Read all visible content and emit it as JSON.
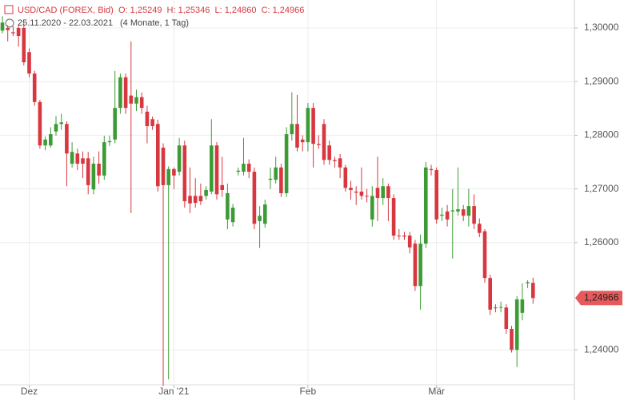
{
  "chart_data": {
    "type": "candlestick",
    "header": {
      "title": "USD/CAD (FOREX, Bid)",
      "ohlc": "O: 1,25249  H: 1,25346  L: 1,24860  C: 1,24966",
      "range": "25.11.2020 - 22.03.2021",
      "duration": "(4 Monate, 1 Tag)"
    },
    "last_label": "1,24966",
    "up_color": "#3d9b35",
    "down_color": "#d7373f",
    "grid": true,
    "ylim": [
      1.23378,
      1.30521
    ],
    "yticks": [
      {
        "value": 1.3,
        "label": "1,30000"
      },
      {
        "value": 1.29,
        "label": "1,29000"
      },
      {
        "value": 1.28,
        "label": "1,28000"
      },
      {
        "value": 1.27,
        "label": "1,27000"
      },
      {
        "value": 1.26,
        "label": "1,26000"
      },
      {
        "value": 1.24,
        "label": "1,24000"
      }
    ],
    "categories": [
      null,
      null,
      null,
      null,
      null,
      "Dez",
      null,
      null,
      null,
      null,
      null,
      null,
      null,
      null,
      null,
      null,
      null,
      null,
      null,
      null,
      null,
      null,
      null,
      null,
      null,
      null,
      null,
      null,
      null,
      null,
      null,
      null,
      "Jan '21",
      null,
      null,
      null,
      null,
      null,
      null,
      null,
      null,
      null,
      null,
      null,
      null,
      null,
      null,
      null,
      null,
      null,
      null,
      null,
      null,
      null,
      null,
      null,
      null,
      "Feb",
      null,
      null,
      null,
      null,
      null,
      null,
      null,
      null,
      null,
      null,
      null,
      null,
      null,
      null,
      null,
      null,
      null,
      null,
      null,
      null,
      null,
      null,
      null,
      "Mär",
      null,
      null,
      null,
      null,
      null,
      null,
      null,
      null,
      null,
      null,
      null,
      null,
      null,
      null,
      null,
      null,
      null,
      null
    ],
    "open": [
      1.2995,
      1.3,
      1.2992,
      1.3,
      1.3,
      1.2955,
      1.2915,
      1.2862,
      1.2781,
      1.2781,
      1.2807,
      1.2821,
      1.2821,
      1.2747,
      1.2766,
      1.2757,
      1.2757,
      1.2699,
      1.2747,
      1.2725,
      1.2787,
      1.2792,
      1.2851,
      1.2908,
      1.2874,
      1.2859,
      1.2871,
      1.2844,
      1.283,
      1.2821,
      1.2777,
      1.2707,
      1.2737,
      1.2732,
      1.2781,
      1.2687,
      1.2687,
      1.2687,
      1.2687,
      1.2695,
      1.2781,
      1.2707,
      1.2643,
      1.2638,
      1.2732,
      1.2732,
      1.2747,
      1.2732,
      1.264,
      1.2635,
      1.2717,
      1.2717,
      1.274,
      1.2692,
      1.2802,
      1.2821,
      1.2792,
      1.2787,
      1.2851,
      1.2784,
      1.2821,
      1.2781,
      1.2754,
      1.2757,
      1.274,
      1.2702,
      1.2695,
      1.2695,
      1.2687,
      1.2643,
      1.2702,
      1.2683,
      1.2705,
      1.2683,
      1.2613,
      1.2613,
      1.2613,
      1.2598,
      1.2519,
      1.2598,
      1.2737,
      1.2735,
      1.265,
      1.2658,
      1.2658,
      1.2658,
      1.2662,
      1.265,
      1.2668,
      1.2635,
      1.2621,
      1.2534,
      1.2479,
      1.2479,
      1.2479,
      1.2439,
      1.24,
      1.2469,
      1.2524,
      1.25249
    ],
    "high": [
      1.3022,
      1.3005,
      1.3003,
      1.3007,
      1.301,
      1.2962,
      1.292,
      1.2866,
      1.2798,
      1.2815,
      1.2836,
      1.284,
      1.2826,
      1.2787,
      1.2775,
      1.277,
      1.2769,
      1.276,
      1.277,
      1.2799,
      1.2799,
      1.292,
      1.2915,
      1.2915,
      1.2975,
      1.2885,
      1.288,
      1.2855,
      1.2835,
      1.2829,
      1.2785,
      1.2742,
      1.274,
      1.2795,
      1.279,
      1.274,
      1.272,
      1.271,
      1.2705,
      1.283,
      1.2787,
      1.276,
      1.271,
      1.2672,
      1.274,
      1.2795,
      1.2755,
      1.274,
      1.2668,
      1.268,
      1.274,
      1.276,
      1.2747,
      1.2815,
      1.288,
      1.2875,
      1.28,
      1.286,
      1.286,
      1.28,
      1.283,
      1.279,
      1.276,
      1.2765,
      1.2745,
      1.2715,
      1.2705,
      1.274,
      1.27,
      1.2705,
      1.276,
      1.272,
      1.271,
      1.269,
      1.2625,
      1.262,
      1.262,
      1.2605,
      1.2615,
      1.275,
      1.2745,
      1.274,
      1.2665,
      1.267,
      1.27,
      1.274,
      1.267,
      1.27,
      1.269,
      1.2645,
      1.2625,
      1.254,
      1.2485,
      1.249,
      1.2485,
      1.2445,
      1.25,
      1.2524,
      1.253,
      1.25346
    ],
    "low": [
      1.299,
      1.2975,
      1.2985,
      1.2965,
      1.293,
      1.2908,
      1.2855,
      1.2775,
      1.2772,
      1.2777,
      1.2799,
      1.281,
      1.2705,
      1.274,
      1.2735,
      1.272,
      1.269,
      1.269,
      1.271,
      1.2717,
      1.278,
      1.2785,
      1.284,
      1.284,
      1.2655,
      1.2845,
      1.284,
      1.2785,
      1.281,
      1.2695,
      1.2333,
      1.2345,
      1.27,
      1.2725,
      1.2665,
      1.2655,
      1.2665,
      1.267,
      1.268,
      1.269,
      1.268,
      1.2685,
      1.2625,
      1.263,
      1.2725,
      1.2725,
      1.272,
      1.2625,
      1.259,
      1.2628,
      1.27,
      1.271,
      1.2685,
      1.2685,
      1.279,
      1.277,
      1.277,
      1.277,
      1.274,
      1.2775,
      1.2745,
      1.2745,
      1.274,
      1.272,
      1.2695,
      1.268,
      1.267,
      1.268,
      1.2675,
      1.263,
      1.264,
      1.267,
      1.264,
      1.2605,
      1.2605,
      1.2605,
      1.258,
      1.251,
      1.2475,
      1.259,
      1.2725,
      1.2635,
      1.264,
      1.263,
      1.257,
      1.265,
      1.264,
      1.263,
      1.2625,
      1.261,
      1.2525,
      1.2465,
      1.247,
      1.247,
      1.243,
      1.2395,
      1.2368,
      1.2455,
      1.2515,
      1.2486
    ],
    "close": [
      1.301,
      1.2996,
      1.299,
      1.2985,
      1.2936,
      1.2915,
      1.2862,
      1.2781,
      1.2792,
      1.2802,
      1.2821,
      1.2824,
      1.2766,
      1.2769,
      1.2747,
      1.2747,
      1.2707,
      1.2747,
      1.2725,
      1.2787,
      1.2789,
      1.2851,
      1.2908,
      1.2851,
      1.2859,
      1.2871,
      1.2851,
      1.2817,
      1.2817,
      1.2705,
      1.2707,
      1.2737,
      1.2725,
      1.2781,
      1.2677,
      1.2673,
      1.2674,
      1.2677,
      1.2698,
      1.2781,
      1.269,
      1.2698,
      1.2692,
      1.2665,
      1.2734,
      1.2747,
      1.2732,
      1.2635,
      1.265,
      1.2671,
      1.2719,
      1.274,
      1.2692,
      1.2802,
      1.2821,
      1.2777,
      1.2787,
      1.2851,
      1.2784,
      1.2782,
      1.2754,
      1.2754,
      1.2752,
      1.274,
      1.2702,
      1.2698,
      1.2693,
      1.2687,
      1.2686,
      1.2687,
      1.2683,
      1.2705,
      1.2683,
      1.2613,
      1.2612,
      1.2611,
      1.2591,
      1.2519,
      1.2598,
      1.274,
      1.2735,
      1.2643,
      1.2652,
      1.2643,
      1.266,
      1.2662,
      1.265,
      1.2668,
      1.2635,
      1.2618,
      1.2534,
      1.2475,
      1.2478,
      1.248,
      1.2439,
      1.24,
      1.2494,
      1.2494,
      1.2526,
      1.24966
    ]
  }
}
